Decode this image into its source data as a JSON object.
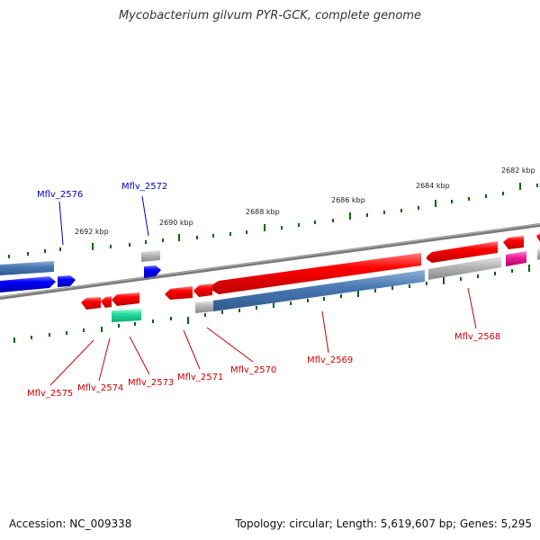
{
  "title": "Mycobacterium gilvum PYR-GCK, complete genome",
  "scale_labels": [
    "2692 kbp",
    "2690 kbp",
    "2688 kbp",
    "2686 kbp",
    "2684 kbp",
    "2682 kbp"
  ],
  "genes": [
    {
      "label": "Mflv_2576",
      "color": "#0000cc"
    },
    {
      "label": "Mflv_2572",
      "color": "#0000cc"
    },
    {
      "label": "Mflv_2575",
      "color": "#cc0000"
    },
    {
      "label": "Mflv_2574",
      "color": "#cc0000"
    },
    {
      "label": "Mflv_2573",
      "color": "#cc0000"
    },
    {
      "label": "Mflv_2571",
      "color": "#cc0000"
    },
    {
      "label": "Mflv_2570",
      "color": "#cc0000"
    },
    {
      "label": "Mflv_2569",
      "color": "#cc0000"
    },
    {
      "label": "Mflv_2568",
      "color": "#cc0000"
    }
  ],
  "footer": {
    "accession": "Accession: NC_009338",
    "topology": "Topology: circular; Length: 5,619,607 bp; Genes: 5,295"
  },
  "colors": {
    "forward_gene": "#ff0000",
    "reverse_gene": "#0000ff",
    "rna_gene": "#4a7ab5",
    "pseudo_gene": "#b0b0b0",
    "magenta_gene": "#ee2299",
    "teal_gene": "#22dd99",
    "backbone": "#808080",
    "tick": "#006600"
  }
}
